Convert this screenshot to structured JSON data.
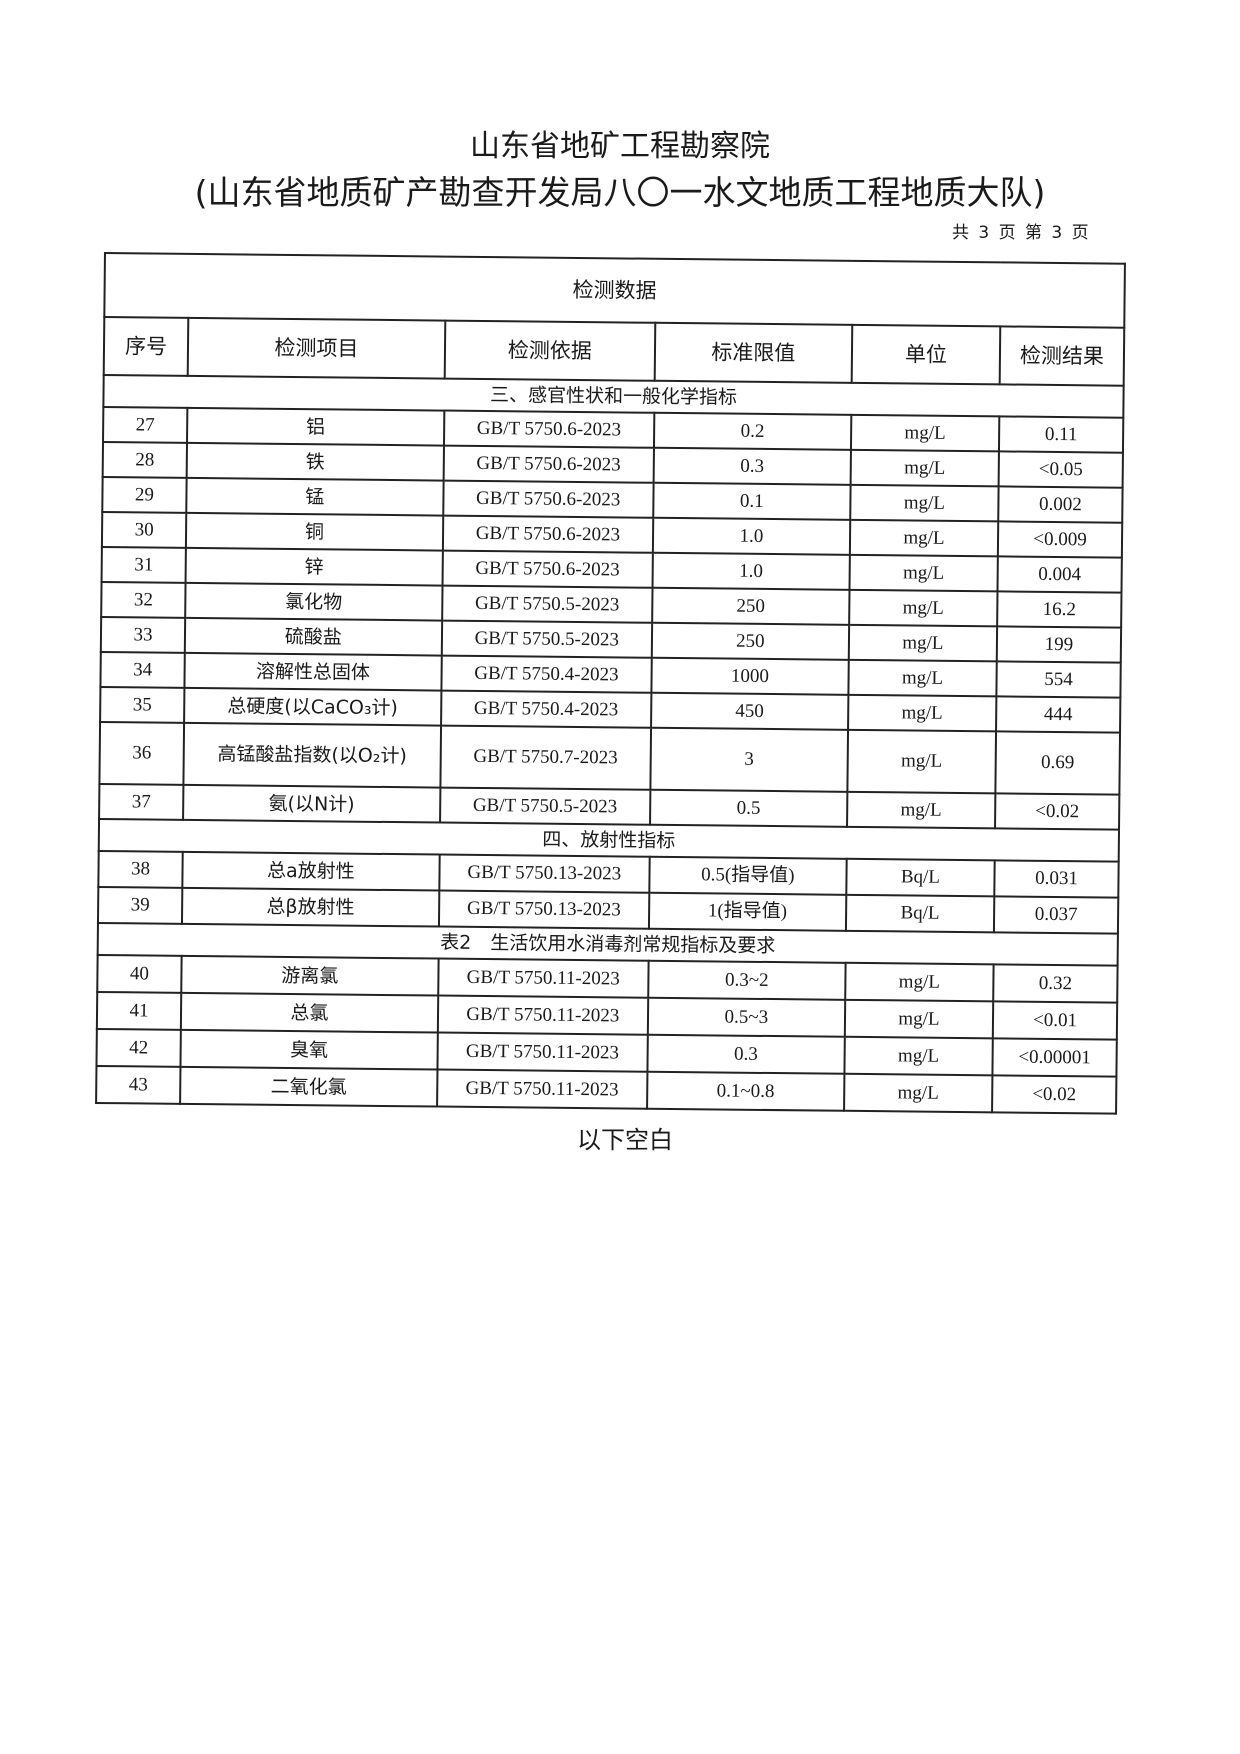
{
  "header": {
    "title": "山东省地矿工程勘察院",
    "subtitle": "(山东省地质矿产勘查开发局八〇一水文地质工程地质大队)",
    "page_info": "共 3 页 第 3 页"
  },
  "table": {
    "title": "检测数据",
    "columns": [
      "序号",
      "检测项目",
      "检测依据",
      "标准限值",
      "单位",
      "检测结果"
    ],
    "sections": [
      {
        "heading": "三、感官性状和一般化学指标",
        "rows": [
          [
            "27",
            "铝",
            "GB/T 5750.6-2023",
            "0.2",
            "mg/L",
            "0.11"
          ],
          [
            "28",
            "铁",
            "GB/T 5750.6-2023",
            "0.3",
            "mg/L",
            "<0.05"
          ],
          [
            "29",
            "锰",
            "GB/T 5750.6-2023",
            "0.1",
            "mg/L",
            "0.002"
          ],
          [
            "30",
            "铜",
            "GB/T 5750.6-2023",
            "1.0",
            "mg/L",
            "<0.009"
          ],
          [
            "31",
            "锌",
            "GB/T 5750.6-2023",
            "1.0",
            "mg/L",
            "0.004"
          ],
          [
            "32",
            "氯化物",
            "GB/T 5750.5-2023",
            "250",
            "mg/L",
            "16.2"
          ],
          [
            "33",
            "硫酸盐",
            "GB/T 5750.5-2023",
            "250",
            "mg/L",
            "199"
          ],
          [
            "34",
            "溶解性总固体",
            "GB/T 5750.4-2023",
            "1000",
            "mg/L",
            "554"
          ],
          [
            "35",
            "总硬度(以CaCO₃计)",
            "GB/T 5750.4-2023",
            "450",
            "mg/L",
            "444"
          ],
          [
            "36",
            "高锰酸盐指数(以O₂计)",
            "GB/T 5750.7-2023",
            "3",
            "mg/L",
            "0.69"
          ],
          [
            "37",
            "氨(以N计)",
            "GB/T 5750.5-2023",
            "0.5",
            "mg/L",
            "<0.02"
          ]
        ]
      },
      {
        "heading": "四、放射性指标",
        "rows": [
          [
            "38",
            "总a放射性",
            "GB/T 5750.13-2023",
            "0.5(指导值)",
            "Bq/L",
            "0.031"
          ],
          [
            "39",
            "总β放射性",
            "GB/T 5750.13-2023",
            "1(指导值)",
            "Bq/L",
            "0.037"
          ]
        ]
      },
      {
        "heading": "表2　生活饮用水消毒剂常规指标及要求",
        "rows": [
          [
            "40",
            "游离氯",
            "GB/T 5750.11-2023",
            "0.3~2",
            "mg/L",
            "0.32"
          ],
          [
            "41",
            "总氯",
            "GB/T 5750.11-2023",
            "0.5~3",
            "mg/L",
            "<0.01"
          ],
          [
            "42",
            "臭氧",
            "GB/T 5750.11-2023",
            "0.3",
            "mg/L",
            "<0.00001"
          ],
          [
            "43",
            "二氧化氯",
            "GB/T 5750.11-2023",
            "0.1~0.8",
            "mg/L",
            "<0.02"
          ]
        ]
      }
    ]
  },
  "footer": {
    "end_note": "以下空白"
  }
}
